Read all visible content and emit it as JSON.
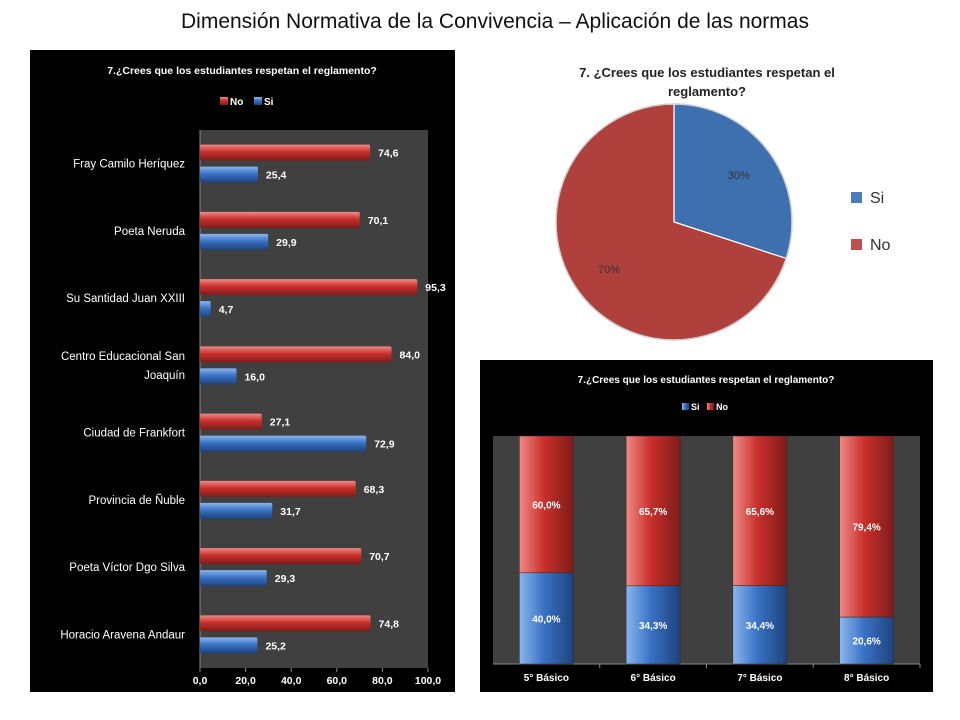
{
  "page": {
    "title": "Dimensión Normativa de la Convivencia – Aplicación de las normas"
  },
  "colors": {
    "si": "#4a7ebb",
    "no": "#c0504d",
    "dark_bg": "#000000",
    "plot_bg": "#404040"
  },
  "chart_data": [
    {
      "id": "schools",
      "type": "bar",
      "orientation": "horizontal",
      "title": "7.¿Crees que los estudiantes respetan el reglamento?",
      "categories": [
        "Fray Camilo Heríquez",
        "Poeta Neruda",
        "Su Santidad Juan XXIII",
        "Centro Educacional San Joaquín",
        "Ciudad de Frankfort",
        "Provincia de Ñuble",
        "Poeta Víctor Dgo Silva",
        "Horacio Aravena Andaur"
      ],
      "series": [
        {
          "name": "No",
          "values": [
            74.6,
            70.1,
            95.3,
            84.0,
            27.1,
            68.3,
            70.7,
            74.8
          ],
          "labels": [
            "74,6",
            "70,1",
            "95,3",
            "84,0",
            "27,1",
            "68,3",
            "70,7",
            "74,8"
          ]
        },
        {
          "name": "Si",
          "values": [
            25.4,
            29.9,
            4.7,
            16.0,
            72.9,
            31.7,
            29.3,
            25.2
          ],
          "labels": [
            "25,4",
            "29,9",
            "4,7",
            "16,0",
            "72,9",
            "31,7",
            "29,3",
            "25,2"
          ]
        }
      ],
      "legend": [
        "No",
        "Si"
      ],
      "legend_position": "top",
      "xlim": [
        0,
        100
      ],
      "ticks": [
        "0,0",
        "20,0",
        "40,0",
        "60,0",
        "80,0",
        "100,0"
      ]
    },
    {
      "id": "pie",
      "type": "pie",
      "title": "7. ¿Crees que los estudiantes respetan el reglamento?",
      "slices": [
        {
          "name": "Si",
          "value": 30,
          "label": "30%"
        },
        {
          "name": "No",
          "value": 70,
          "label": "70%"
        }
      ],
      "legend_position": "right"
    },
    {
      "id": "grades",
      "type": "bar",
      "stacked": true,
      "title": "7.¿Crees que los estudiantes respetan el reglamento?",
      "categories": [
        "5° Básico",
        "6° Básico",
        "7° Básico",
        "8° Básico"
      ],
      "series": [
        {
          "name": "Si",
          "values": [
            40.0,
            34.3,
            34.4,
            20.6
          ],
          "labels": [
            "40,0%",
            "34,3%",
            "34,4%",
            "20,6%"
          ]
        },
        {
          "name": "No",
          "values": [
            60.0,
            65.7,
            65.6,
            79.4
          ],
          "labels": [
            "60,0%",
            "65,7%",
            "65,6%",
            "79,4%"
          ]
        }
      ],
      "legend": [
        "Si",
        "No"
      ],
      "legend_position": "top",
      "ylim": [
        0,
        100
      ]
    }
  ]
}
